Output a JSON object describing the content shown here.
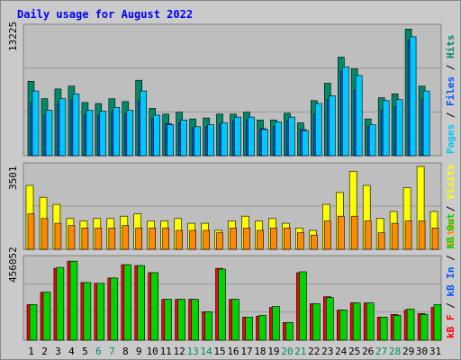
{
  "title": "Daily usage for August 2022",
  "colors": {
    "background": "#cacaca",
    "panel": "#bebebe",
    "grid": "#9a9a9a",
    "title": "#0000ff",
    "pages": "#00c8ff",
    "files": "#0055ff",
    "hits": "#008a6a",
    "visits": "#ffff00",
    "sites": "#ff8a00",
    "kbin": "#00d400",
    "kbout": "#0055ff",
    "kbf": "#ff0000",
    "tick_weekday": "#000000",
    "tick_weekend": "#008a6a"
  },
  "chart_data": [
    {
      "type": "bar",
      "name": "hits-files-pages",
      "ymax_label": "13225",
      "ylim": [
        0,
        13225
      ],
      "x": [
        1,
        2,
        3,
        4,
        5,
        6,
        7,
        8,
        9,
        10,
        11,
        12,
        13,
        14,
        15,
        16,
        17,
        18,
        19,
        20,
        21,
        22,
        23,
        24,
        25,
        26,
        27,
        28,
        29,
        30,
        31
      ],
      "legend": [
        {
          "text": "Pages",
          "color": "#00c8ff"
        },
        {
          "text": "Files",
          "color": "#0055ff"
        },
        {
          "text": "Hits",
          "color": "#008a6a"
        }
      ],
      "series": [
        {
          "name": "Hits",
          "color": "#008a6a",
          "values": [
            7700,
            5900,
            6900,
            7200,
            5500,
            5400,
            5900,
            5600,
            7800,
            4900,
            4300,
            4500,
            3800,
            3900,
            4300,
            4300,
            4500,
            3700,
            3700,
            4400,
            3400,
            5700,
            7500,
            10200,
            9000,
            3800,
            6000,
            6400,
            13100,
            7200,
            0
          ]
        },
        {
          "name": "Files",
          "color": "#0055ff",
          "values": [
            5500,
            4200,
            5300,
            5800,
            4200,
            4200,
            4500,
            4300,
            5700,
            3800,
            3300,
            3400,
            2900,
            3000,
            3300,
            3600,
            3700,
            2800,
            3000,
            3600,
            2700,
            4300,
            5800,
            8700,
            6800,
            3000,
            4700,
            5100,
            12000,
            5800,
            0
          ]
        },
        {
          "name": "Pages",
          "color": "#00c8ff",
          "values": [
            6700,
            4700,
            5900,
            6400,
            4700,
            4600,
            5000,
            4700,
            6700,
            4200,
            3200,
            3700,
            3000,
            3200,
            3400,
            4000,
            4000,
            2700,
            3500,
            4000,
            2600,
            5400,
            6200,
            9200,
            8300,
            3200,
            5700,
            5800,
            12300,
            6700,
            0
          ]
        }
      ]
    },
    {
      "type": "bar",
      "name": "visits-sites",
      "ymax_label": "3501",
      "ylim": [
        0,
        3501
      ],
      "x": [
        1,
        2,
        3,
        4,
        5,
        6,
        7,
        8,
        9,
        10,
        11,
        12,
        13,
        14,
        15,
        16,
        17,
        18,
        19,
        20,
        21,
        22,
        23,
        24,
        25,
        26,
        27,
        28,
        29,
        30,
        31
      ],
      "legend": [
        {
          "text": "Sites",
          "color": "#ff8a00"
        },
        {
          "text": "Visits",
          "color": "#ffff00"
        }
      ],
      "series": [
        {
          "name": "Sites",
          "color": "#ff8a00",
          "values": [
            1500,
            1300,
            1100,
            1000,
            900,
            900,
            900,
            1000,
            900,
            900,
            900,
            800,
            800,
            800,
            700,
            900,
            900,
            800,
            900,
            900,
            700,
            600,
            1200,
            1400,
            1400,
            1200,
            700,
            1100,
            1200,
            1200,
            900
          ]
        },
        {
          "name": "Visits",
          "color": "#ffff00",
          "values": [
            2700,
            2200,
            1900,
            1300,
            1200,
            1300,
            1300,
            1400,
            1500,
            1200,
            1200,
            1300,
            1100,
            1100,
            800,
            1200,
            1400,
            1200,
            1300,
            1100,
            900,
            800,
            1900,
            2400,
            3300,
            2700,
            1300,
            1600,
            2600,
            3501,
            1600
          ]
        }
      ]
    },
    {
      "type": "bar",
      "name": "kbf-kbin-kbout",
      "ymax_label": "456052",
      "ylim": [
        0,
        456052
      ],
      "x": [
        1,
        2,
        3,
        4,
        5,
        6,
        7,
        8,
        9,
        10,
        11,
        12,
        13,
        14,
        15,
        16,
        17,
        18,
        19,
        20,
        21,
        22,
        23,
        24,
        25,
        26,
        27,
        28,
        29,
        30,
        31
      ],
      "legend": [
        {
          "text": "kB F",
          "color": "#ff0000"
        },
        {
          "text": "kB In",
          "color": "#0055ff"
        },
        {
          "text": "kB Out",
          "color": "#00d400"
        }
      ],
      "series": [
        {
          "name": "kB F",
          "color": "#ff0000",
          "values": [
            200000,
            270000,
            405000,
            445000,
            325000,
            320000,
            350000,
            425000,
            420000,
            380000,
            230000,
            230000,
            230000,
            160000,
            405000,
            230000,
            130000,
            135000,
            185000,
            100000,
            380000,
            205000,
            245000,
            170000,
            210000,
            210000,
            130000,
            145000,
            170000,
            150000,
            185000
          ]
        },
        {
          "name": "kB Out",
          "color": "#00d400",
          "values": [
            200000,
            270000,
            410000,
            445000,
            325000,
            320000,
            350000,
            425000,
            420000,
            380000,
            230000,
            230000,
            230000,
            160000,
            400000,
            230000,
            130000,
            140000,
            190000,
            100000,
            385000,
            205000,
            240000,
            170000,
            210000,
            210000,
            130000,
            140000,
            175000,
            145000,
            200000
          ]
        }
      ]
    }
  ]
}
